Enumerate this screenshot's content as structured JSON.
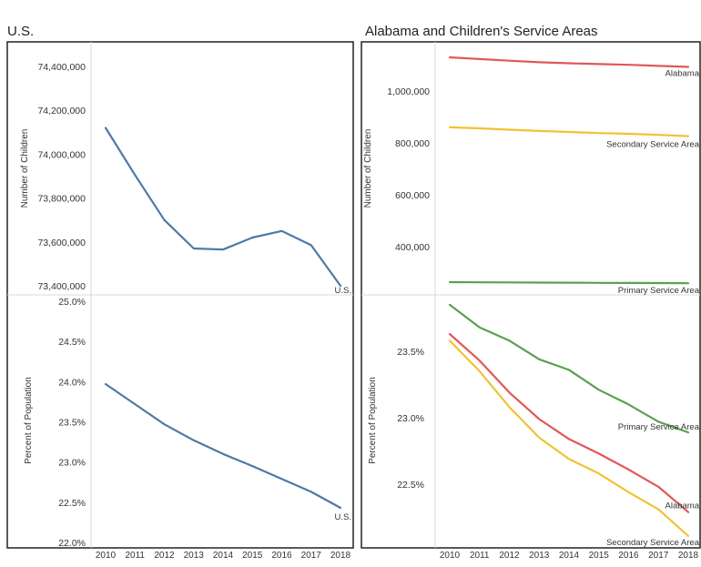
{
  "titles": {
    "left": "U.S.",
    "right": "Alabama and Children's Service Areas"
  },
  "colors": {
    "us": "#4e79a7",
    "alabama": "#e15759",
    "secondary": "#f1c232",
    "primary": "#59a14f",
    "frame": "#222222",
    "divider": "#d9d9d9",
    "text": "#333333"
  },
  "chart_data": [
    {
      "type": "line",
      "id": "us-children",
      "title": "",
      "xlabel": "",
      "ylabel": "Number of Children",
      "x": [
        2010,
        2011,
        2012,
        2013,
        2014,
        2015,
        2016,
        2017,
        2018
      ],
      "ylim": [
        73400000,
        74450000
      ],
      "yticks": [
        73400000,
        73600000,
        73800000,
        74000000,
        74200000,
        74400000
      ],
      "ytick_labels": [
        "73,400,000",
        "73,600,000",
        "73,800,000",
        "74,000,000",
        "74,200,000",
        "74,400,000"
      ],
      "series": [
        {
          "name": "U.S.",
          "color": "#4e79a7",
          "values": [
            74120000,
            73905000,
            73700000,
            73570000,
            73565000,
            73620000,
            73650000,
            73585000,
            73400000
          ]
        }
      ]
    },
    {
      "type": "line",
      "id": "al-children",
      "title": "",
      "xlabel": "",
      "ylabel": "Number of Children",
      "x": [
        2010,
        2011,
        2012,
        2013,
        2014,
        2015,
        2016,
        2017,
        2018
      ],
      "ylim": [
        230000,
        1170000
      ],
      "yticks": [
        400000,
        600000,
        800000,
        1000000
      ],
      "ytick_labels": [
        "400,000",
        "600,000",
        "800,000",
        "1,000,000"
      ],
      "series": [
        {
          "name": "Alabama",
          "color": "#e15759",
          "values": [
            1130000,
            1123000,
            1117000,
            1111000,
            1107000,
            1104000,
            1101000,
            1097000,
            1093000
          ]
        },
        {
          "name": "Secondary Service Area",
          "color": "#f1c232",
          "values": [
            860000,
            856000,
            851000,
            846000,
            842000,
            838000,
            835000,
            831000,
            826000
          ]
        },
        {
          "name": "Primary Service Area",
          "color": "#59a14f",
          "values": [
            263000,
            262500,
            262000,
            261500,
            261000,
            260500,
            260000,
            259500,
            259000
          ]
        }
      ]
    },
    {
      "type": "line",
      "id": "us-percent",
      "title": "",
      "xlabel": "",
      "ylabel": "Percent of Population",
      "x": [
        2010,
        2011,
        2012,
        2013,
        2014,
        2015,
        2016,
        2017,
        2018
      ],
      "ylim": [
        22.0,
        25.0
      ],
      "yticks": [
        22.0,
        22.5,
        23.0,
        23.5,
        24.0,
        24.5,
        25.0
      ],
      "ytick_labels": [
        "22.0%",
        "22.5%",
        "23.0%",
        "23.5%",
        "24.0%",
        "24.5%",
        "25.0%"
      ],
      "series": [
        {
          "name": "U.S.",
          "color": "#4e79a7",
          "values": [
            23.97,
            23.72,
            23.47,
            23.27,
            23.1,
            22.95,
            22.79,
            22.63,
            22.43
          ]
        }
      ]
    },
    {
      "type": "line",
      "id": "al-percent",
      "title": "",
      "xlabel": "",
      "ylabel": "Percent of Population",
      "x": [
        2010,
        2011,
        2012,
        2013,
        2014,
        2015,
        2016,
        2017,
        2018
      ],
      "ylim": [
        21.95,
        23.95
      ],
      "yticks": [
        22.5,
        23.0,
        23.5
      ],
      "ytick_labels": [
        "22.5%",
        "23.0%",
        "23.5%"
      ],
      "series": [
        {
          "name": "Primary Service Area",
          "color": "#59a14f",
          "values": [
            23.85,
            23.68,
            23.58,
            23.44,
            23.36,
            23.21,
            23.1,
            22.97,
            22.89
          ]
        },
        {
          "name": "Alabama",
          "color": "#e15759",
          "values": [
            23.63,
            23.43,
            23.19,
            22.99,
            22.84,
            22.73,
            22.61,
            22.48,
            22.29
          ]
        },
        {
          "name": "Secondary Service Area",
          "color": "#f1c232",
          "values": [
            23.58,
            23.35,
            23.08,
            22.85,
            22.69,
            22.58,
            22.44,
            22.31,
            22.11
          ]
        }
      ]
    }
  ]
}
